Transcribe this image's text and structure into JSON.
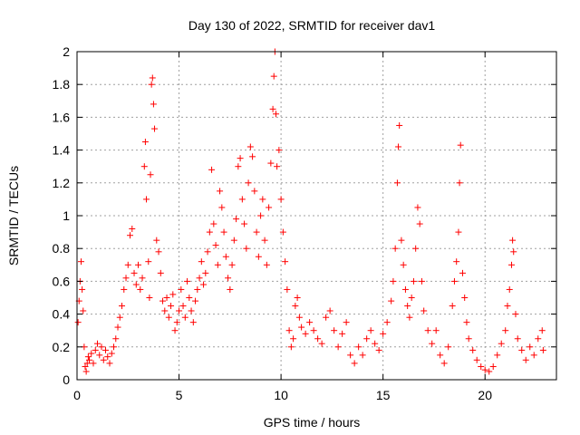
{
  "chart_data": {
    "type": "scatter",
    "title": "Day 130 of 2022, SRMTID for receiver dav1",
    "xlabel": "GPS time / hours",
    "ylabel": "SRMTID / TECUs",
    "xlim": [
      0,
      23.5
    ],
    "ylim": [
      0,
      2
    ],
    "x_ticks": [
      0,
      5,
      10,
      15,
      20
    ],
    "x_tick_labels": [
      "0",
      "5",
      "10",
      "15",
      "20"
    ],
    "y_ticks": [
      0,
      0.2,
      0.4,
      0.6,
      0.8,
      1,
      1.2,
      1.4,
      1.6,
      1.8,
      2
    ],
    "y_tick_labels": [
      "0",
      "0.2",
      "0.4",
      "0.6",
      "0.8",
      "1",
      "1.2",
      "1.4",
      "1.6",
      "1.8",
      "2"
    ],
    "grid": true,
    "marker": "+",
    "colors": {
      "series": "#ff0000",
      "grid": "#a0a0a0",
      "axis": "#000000"
    },
    "series": [
      {
        "name": "SRMTID",
        "points": [
          [
            0.05,
            0.35
          ],
          [
            0.1,
            0.48
          ],
          [
            0.15,
            0.6
          ],
          [
            0.2,
            0.72
          ],
          [
            0.25,
            0.55
          ],
          [
            0.3,
            0.42
          ],
          [
            0.35,
            0.2
          ],
          [
            0.4,
            0.08
          ],
          [
            0.45,
            0.05
          ],
          [
            0.5,
            0.1
          ],
          [
            0.55,
            0.14
          ],
          [
            0.6,
            0.12
          ],
          [
            0.7,
            0.16
          ],
          [
            0.8,
            0.1
          ],
          [
            0.9,
            0.18
          ],
          [
            1.0,
            0.22
          ],
          [
            1.1,
            0.15
          ],
          [
            1.2,
            0.2
          ],
          [
            1.3,
            0.12
          ],
          [
            1.4,
            0.18
          ],
          [
            1.5,
            0.14
          ],
          [
            1.6,
            0.1
          ],
          [
            1.7,
            0.16
          ],
          [
            1.8,
            0.2
          ],
          [
            1.9,
            0.25
          ],
          [
            2.0,
            0.32
          ],
          [
            2.1,
            0.38
          ],
          [
            2.2,
            0.45
          ],
          [
            2.3,
            0.55
          ],
          [
            2.4,
            0.62
          ],
          [
            2.5,
            0.7
          ],
          [
            2.6,
            0.88
          ],
          [
            2.7,
            0.92
          ],
          [
            2.8,
            0.65
          ],
          [
            2.9,
            0.58
          ],
          [
            3.0,
            0.7
          ],
          [
            3.1,
            0.55
          ],
          [
            3.2,
            0.62
          ],
          [
            3.3,
            1.3
          ],
          [
            3.35,
            1.45
          ],
          [
            3.4,
            1.1
          ],
          [
            3.5,
            0.72
          ],
          [
            3.55,
            0.5
          ],
          [
            3.6,
            1.25
          ],
          [
            3.65,
            1.8
          ],
          [
            3.7,
            1.84
          ],
          [
            3.75,
            1.68
          ],
          [
            3.8,
            1.53
          ],
          [
            3.9,
            0.85
          ],
          [
            4.0,
            0.78
          ],
          [
            4.1,
            0.65
          ],
          [
            4.2,
            0.48
          ],
          [
            4.3,
            0.42
          ],
          [
            4.4,
            0.5
          ],
          [
            4.5,
            0.38
          ],
          [
            4.6,
            0.45
          ],
          [
            4.7,
            0.52
          ],
          [
            4.8,
            0.3
          ],
          [
            4.9,
            0.35
          ],
          [
            5.0,
            0.42
          ],
          [
            5.1,
            0.55
          ],
          [
            5.2,
            0.45
          ],
          [
            5.3,
            0.38
          ],
          [
            5.4,
            0.6
          ],
          [
            5.5,
            0.5
          ],
          [
            5.6,
            0.42
          ],
          [
            5.7,
            0.35
          ],
          [
            5.8,
            0.48
          ],
          [
            5.9,
            0.55
          ],
          [
            6.0,
            0.62
          ],
          [
            6.1,
            0.72
          ],
          [
            6.2,
            0.58
          ],
          [
            6.3,
            0.65
          ],
          [
            6.4,
            0.78
          ],
          [
            6.5,
            0.9
          ],
          [
            6.6,
            1.28
          ],
          [
            6.7,
            0.95
          ],
          [
            6.8,
            0.82
          ],
          [
            6.9,
            0.7
          ],
          [
            7.0,
            1.15
          ],
          [
            7.1,
            1.05
          ],
          [
            7.2,
            0.9
          ],
          [
            7.3,
            0.75
          ],
          [
            7.4,
            0.62
          ],
          [
            7.5,
            0.55
          ],
          [
            7.6,
            0.7
          ],
          [
            7.7,
            0.85
          ],
          [
            7.8,
            0.98
          ],
          [
            7.9,
            1.3
          ],
          [
            8.0,
            1.35
          ],
          [
            8.1,
            1.1
          ],
          [
            8.2,
            0.95
          ],
          [
            8.3,
            0.8
          ],
          [
            8.4,
            1.2
          ],
          [
            8.5,
            1.42
          ],
          [
            8.6,
            1.36
          ],
          [
            8.7,
            1.15
          ],
          [
            8.8,
            0.9
          ],
          [
            8.9,
            0.75
          ],
          [
            9.0,
            1.0
          ],
          [
            9.1,
            1.1
          ],
          [
            9.2,
            0.85
          ],
          [
            9.3,
            0.7
          ],
          [
            9.4,
            1.05
          ],
          [
            9.5,
            1.32
          ],
          [
            9.6,
            1.65
          ],
          [
            9.65,
            1.85
          ],
          [
            9.7,
            2.0
          ],
          [
            9.75,
            1.62
          ],
          [
            9.8,
            1.3
          ],
          [
            9.9,
            1.4
          ],
          [
            10.0,
            1.1
          ],
          [
            10.1,
            0.9
          ],
          [
            10.2,
            0.72
          ],
          [
            10.3,
            0.55
          ],
          [
            10.4,
            0.3
          ],
          [
            10.5,
            0.2
          ],
          [
            10.6,
            0.25
          ],
          [
            10.7,
            0.45
          ],
          [
            10.8,
            0.5
          ],
          [
            10.9,
            0.38
          ],
          [
            11.0,
            0.32
          ],
          [
            11.2,
            0.28
          ],
          [
            11.4,
            0.35
          ],
          [
            11.6,
            0.3
          ],
          [
            11.8,
            0.25
          ],
          [
            12.0,
            0.22
          ],
          [
            12.2,
            0.38
          ],
          [
            12.4,
            0.42
          ],
          [
            12.6,
            0.3
          ],
          [
            12.8,
            0.2
          ],
          [
            13.0,
            0.28
          ],
          [
            13.2,
            0.35
          ],
          [
            13.4,
            0.15
          ],
          [
            13.6,
            0.1
          ],
          [
            13.8,
            0.2
          ],
          [
            14.0,
            0.15
          ],
          [
            14.2,
            0.25
          ],
          [
            14.4,
            0.3
          ],
          [
            14.6,
            0.22
          ],
          [
            14.8,
            0.18
          ],
          [
            15.0,
            0.28
          ],
          [
            15.2,
            0.35
          ],
          [
            15.4,
            0.48
          ],
          [
            15.5,
            0.6
          ],
          [
            15.6,
            0.8
          ],
          [
            15.7,
            1.2
          ],
          [
            15.75,
            1.42
          ],
          [
            15.8,
            1.55
          ],
          [
            15.9,
            0.85
          ],
          [
            16.0,
            0.7
          ],
          [
            16.1,
            0.55
          ],
          [
            16.2,
            0.45
          ],
          [
            16.3,
            0.38
          ],
          [
            16.4,
            0.5
          ],
          [
            16.5,
            0.6
          ],
          [
            16.6,
            0.8
          ],
          [
            16.7,
            1.05
          ],
          [
            16.8,
            0.95
          ],
          [
            16.9,
            0.6
          ],
          [
            17.0,
            0.42
          ],
          [
            17.2,
            0.3
          ],
          [
            17.4,
            0.22
          ],
          [
            17.6,
            0.3
          ],
          [
            17.8,
            0.15
          ],
          [
            18.0,
            0.1
          ],
          [
            18.2,
            0.2
          ],
          [
            18.4,
            0.45
          ],
          [
            18.5,
            0.6
          ],
          [
            18.6,
            0.72
          ],
          [
            18.7,
            0.9
          ],
          [
            18.75,
            1.2
          ],
          [
            18.8,
            1.43
          ],
          [
            18.9,
            0.65
          ],
          [
            19.0,
            0.5
          ],
          [
            19.1,
            0.35
          ],
          [
            19.2,
            0.25
          ],
          [
            19.4,
            0.18
          ],
          [
            19.6,
            0.12
          ],
          [
            19.8,
            0.08
          ],
          [
            20.0,
            0.06
          ],
          [
            20.2,
            0.05
          ],
          [
            20.4,
            0.08
          ],
          [
            20.6,
            0.15
          ],
          [
            20.8,
            0.22
          ],
          [
            21.0,
            0.3
          ],
          [
            21.1,
            0.45
          ],
          [
            21.2,
            0.55
          ],
          [
            21.3,
            0.7
          ],
          [
            21.35,
            0.85
          ],
          [
            21.4,
            0.78
          ],
          [
            21.5,
            0.4
          ],
          [
            21.6,
            0.25
          ],
          [
            21.8,
            0.18
          ],
          [
            22.0,
            0.12
          ],
          [
            22.2,
            0.2
          ],
          [
            22.4,
            0.15
          ],
          [
            22.6,
            0.25
          ],
          [
            22.8,
            0.3
          ],
          [
            22.85,
            0.18
          ]
        ]
      }
    ]
  }
}
